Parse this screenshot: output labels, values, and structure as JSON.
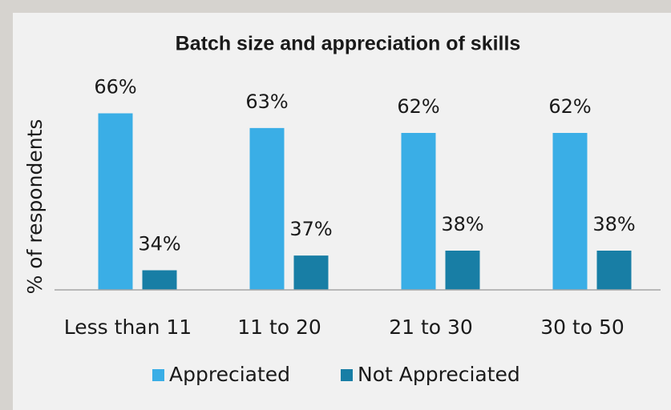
{
  "chart_data": {
    "type": "bar",
    "title": "Batch size and appreciation of skills",
    "y_label": "% of respondents",
    "categories": [
      "Less than 11",
      "11 to 20",
      "21 to 30",
      "30 to 50"
    ],
    "series": [
      {
        "name": "Appreciated",
        "color": "#3aaee6",
        "values": [
          66,
          63,
          62,
          62
        ],
        "value_labels": [
          "66%",
          "63%",
          "62%",
          "62%"
        ]
      },
      {
        "name": "Not Appreciated",
        "color": "#187ea5",
        "values": [
          34,
          37,
          38,
          38
        ],
        "value_labels": [
          "34%",
          "37%",
          "38%",
          "38%"
        ]
      }
    ],
    "ylim": [
      30,
      70
    ],
    "legend": "bottom"
  }
}
